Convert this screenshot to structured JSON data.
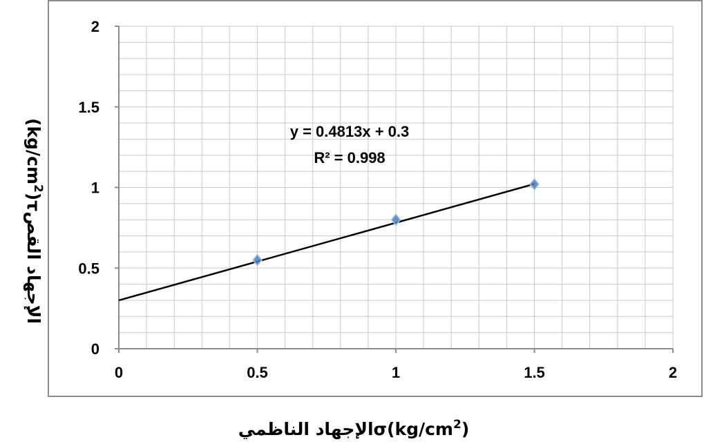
{
  "chart_data": {
    "type": "scatter",
    "title": "",
    "xlabel": "σ(kg/cm2)الإجهاد الناظمي",
    "xlabel_parts": {
      "symbol": "σ",
      "unit_base": "(kg/cm",
      "unit_exp": "2",
      "unit_close": ")",
      "arabic": "الإجهاد الناظمي"
    },
    "ylabel": "τ(kg/cm2)الإجهاد القص",
    "ylabel_parts": {
      "symbol": "τ",
      "unit_base": "(kg/cm",
      "unit_exp": "2",
      "unit_close": ")",
      "arabic": "الإجهاد القص"
    },
    "xlim": [
      0,
      2
    ],
    "ylim": [
      0,
      2
    ],
    "xticks": [
      "0",
      "0.5",
      "1",
      "1.5",
      "2"
    ],
    "yticks": [
      "0",
      "0.5",
      "1",
      "1.5",
      "2"
    ],
    "grid": true,
    "series": [
      {
        "x": [
          0.5,
          1.0,
          1.5
        ],
        "y": [
          0.55,
          0.8,
          1.02
        ],
        "marker": "diamond",
        "color": "#4f81bd"
      }
    ],
    "trendline": {
      "slope": 0.4813,
      "intercept": 0.3,
      "x_range": [
        0,
        1.5
      ],
      "color": "#000000"
    },
    "annotations": {
      "equation": "y = 0.4813x + 0.3",
      "r_squared": "R² = 0.998"
    }
  }
}
